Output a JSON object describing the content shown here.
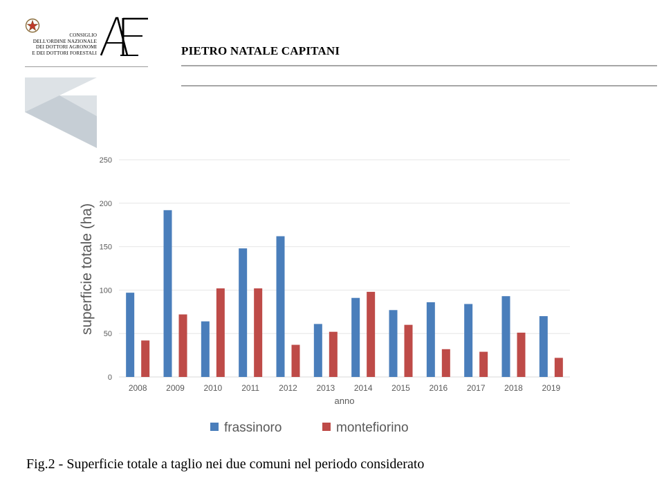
{
  "header": {
    "org_lines": [
      "CONSIGLIO",
      "DELL'ORDINE NAZIONALE",
      "DEI DOTTORI AGRONOMI",
      "E DEI DOTTORI FORESTALI"
    ],
    "logo_mark": "AF",
    "author": "PIETRO NATALE CAPITANI"
  },
  "caption": "Fig.2 - Superficie totale a taglio nei due comuni nel periodo considerato",
  "colors": {
    "frassinoro": "#4a7ebb",
    "montefiorino": "#be4b48",
    "grid": "#e6e6e6",
    "tick": "#595959",
    "rule": "#a6a6a6",
    "deco_light": "#dde2e6",
    "deco_dark": "#c6ced5"
  },
  "chart_data": {
    "type": "bar",
    "categories": [
      "2008",
      "2009",
      "2010",
      "2011",
      "2012",
      "2013",
      "2014",
      "2015",
      "2016",
      "2017",
      "2018",
      "2019"
    ],
    "series": [
      {
        "name": "frassinoro",
        "values": [
          97,
          192,
          64,
          148,
          162,
          61,
          91,
          77,
          86,
          84,
          93,
          70
        ]
      },
      {
        "name": "montefiorino",
        "values": [
          42,
          72,
          102,
          102,
          37,
          52,
          98,
          60,
          32,
          29,
          51,
          22
        ]
      }
    ],
    "xlabel": "anno",
    "ylabel": "superficie totale (ha)",
    "ylim": [
      0,
      250
    ],
    "yticks": [
      "0",
      "50",
      "100",
      "150",
      "200",
      "250"
    ],
    "grid": true,
    "legend_position": "bottom"
  }
}
